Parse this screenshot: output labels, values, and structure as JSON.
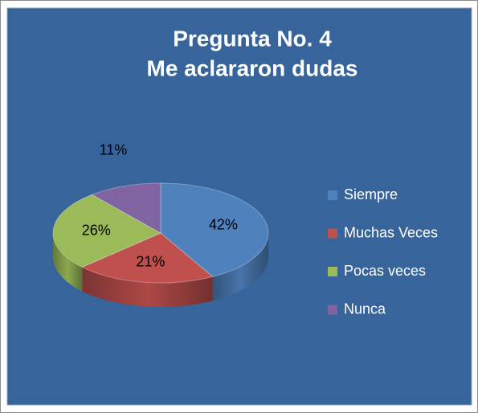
{
  "chart_data": {
    "type": "pie",
    "title": [
      "Pregunta No. 4",
      "Me aclararon dudas"
    ],
    "categories": [
      "Siempre",
      "Muchas Veces",
      "Pocas veces",
      "Nunca"
    ],
    "values": [
      42,
      21,
      26,
      11
    ],
    "value_labels": [
      "42%",
      "21%",
      "26%",
      "11%"
    ],
    "colors": [
      "#4f81bd",
      "#c0504d",
      "#9bbb59",
      "#8064a2"
    ],
    "legend": "right"
  }
}
